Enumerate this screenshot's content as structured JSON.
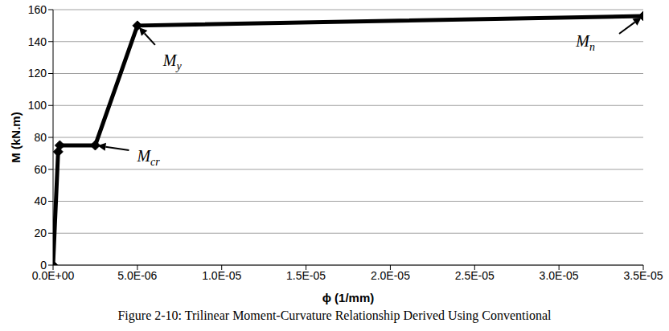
{
  "chart_data": {
    "type": "line",
    "caption": "Figure 2-10: Trilinear Moment-Curvature Relationship Derived Using Conventional",
    "x_label": "ϕ (1/mm)",
    "y_label": "M (kN.m)",
    "x": [
      0,
      3e-07,
      4e-07,
      2.5e-06,
      5e-06,
      3.5e-05
    ],
    "values": [
      0,
      71,
      75,
      75,
      150,
      156
    ],
    "color": "#000000",
    "marker": "diamond",
    "line_style": "solid",
    "xlim": [
      0,
      3.5e-05
    ],
    "xticks": [
      {
        "value": 0,
        "label": "0.0E+00"
      },
      {
        "value": 5e-06,
        "label": "5.0E-06"
      },
      {
        "value": 1e-05,
        "label": "1.0E-05"
      },
      {
        "value": 1.5e-05,
        "label": "1.5E-05"
      },
      {
        "value": 2e-05,
        "label": "2.0E-05"
      },
      {
        "value": 2.5e-05,
        "label": "2.5E-05"
      },
      {
        "value": 3e-05,
        "label": "3.0E-05"
      },
      {
        "value": 3.5e-05,
        "label": "3.5E-05"
      }
    ],
    "ylim": [
      0,
      160
    ],
    "yticks": [
      0,
      20,
      40,
      60,
      80,
      100,
      120,
      140,
      160
    ],
    "grid": true,
    "annotations": [
      {
        "text": "M",
        "subscript": "cr",
        "x": 2.5e-06,
        "y": 75
      },
      {
        "text": "M",
        "subscript": "y",
        "x": 5e-06,
        "y": 150
      },
      {
        "text": "M",
        "subscript": "n",
        "x": 3.5e-05,
        "y": 156
      }
    ]
  }
}
